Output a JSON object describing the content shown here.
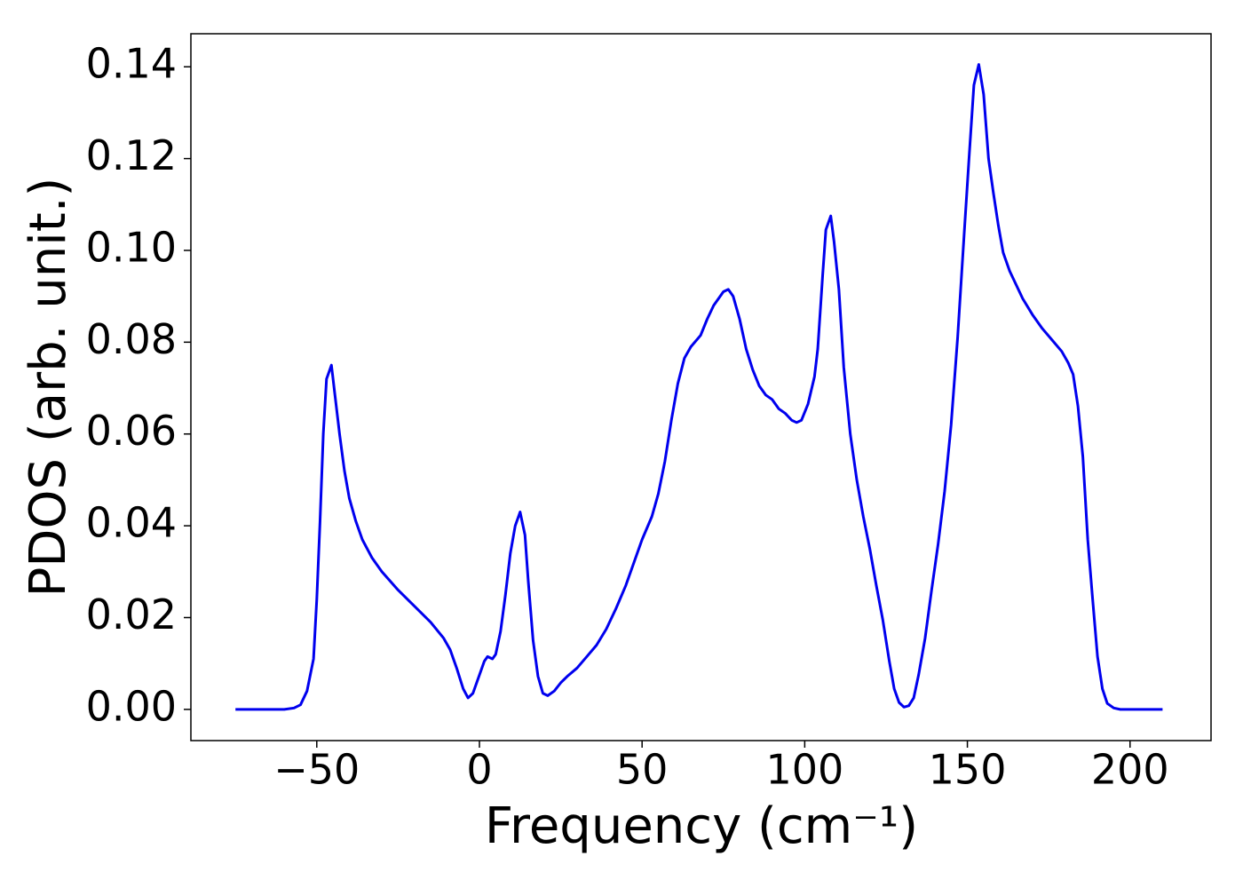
{
  "chart_data": {
    "type": "line",
    "xlabel": "Frequency (cm⁻¹)",
    "ylabel": "PDOS (arb. unit.)",
    "xlim": [
      -88.7,
      224.9
    ],
    "ylim": [
      -0.0068,
      0.1472
    ],
    "xticks": [
      {
        "value": -50,
        "label": "−50"
      },
      0,
      50,
      100,
      150,
      200
    ],
    "yticks": [
      {
        "value": 0,
        "label": "0.00"
      },
      {
        "value": 0.02,
        "label": "0.02"
      },
      {
        "value": 0.04,
        "label": "0.04"
      },
      {
        "value": 0.06,
        "label": "0.06"
      },
      {
        "value": 0.08,
        "label": "0.08"
      },
      {
        "value": 0.1,
        "label": "0.10"
      },
      {
        "value": 0.12,
        "label": "0.12"
      },
      {
        "value": 0.14,
        "label": "0.14"
      }
    ],
    "x": [
      -75,
      -60,
      -57,
      -55,
      -53,
      -51,
      -50,
      -49,
      -48,
      -47,
      -45.5,
      -44.5,
      -43,
      -41.5,
      -40,
      -38,
      -36,
      -33,
      -30,
      -25,
      -20,
      -15,
      -11,
      -9,
      -7,
      -5,
      -3.5,
      -2,
      0,
      1.5,
      2.5,
      4,
      5,
      6.5,
      8,
      9.5,
      11,
      12.5,
      14,
      15,
      16.5,
      18,
      19.5,
      21,
      23,
      25,
      27,
      30,
      33,
      36,
      39,
      42,
      45,
      48,
      50,
      53,
      55,
      57,
      59,
      61,
      63,
      65,
      68,
      70,
      72,
      75,
      76.5,
      78,
      80,
      82,
      84,
      86,
      88,
      90,
      92,
      94,
      96,
      97.5,
      99,
      101,
      103,
      104,
      105.5,
      106.5,
      108,
      109,
      110.5,
      112,
      114,
      116,
      118,
      120,
      122,
      124,
      126,
      127.5,
      129,
      130.5,
      132,
      133.5,
      135,
      137,
      139,
      141,
      143,
      145,
      147,
      149,
      150.5,
      152,
      153.5,
      155,
      156.5,
      158,
      159.5,
      161,
      163,
      165,
      167,
      170,
      173,
      176,
      179,
      181,
      182.5,
      184,
      185.5,
      187,
      188.5,
      190,
      191.5,
      193,
      195,
      197,
      210
    ],
    "series": [
      {
        "name": "PDOS",
        "color": "#0000ee",
        "values": [
          0,
          0,
          0.0003,
          0.001,
          0.004,
          0.011,
          0.024,
          0.041,
          0.06,
          0.072,
          0.075,
          0.069,
          0.06,
          0.052,
          0.046,
          0.041,
          0.037,
          0.033,
          0.03,
          0.026,
          0.0225,
          0.019,
          0.0155,
          0.013,
          0.009,
          0.0045,
          0.0025,
          0.0035,
          0.0075,
          0.0105,
          0.0115,
          0.011,
          0.012,
          0.017,
          0.025,
          0.034,
          0.04,
          0.043,
          0.038,
          0.028,
          0.015,
          0.0072,
          0.0035,
          0.003,
          0.004,
          0.0058,
          0.0072,
          0.009,
          0.0115,
          0.014,
          0.0175,
          0.022,
          0.027,
          0.033,
          0.037,
          0.042,
          0.047,
          0.054,
          0.063,
          0.071,
          0.0765,
          0.079,
          0.0815,
          0.085,
          0.088,
          0.091,
          0.0915,
          0.09,
          0.085,
          0.0785,
          0.074,
          0.0705,
          0.0685,
          0.0675,
          0.0655,
          0.0645,
          0.063,
          0.0625,
          0.063,
          0.0665,
          0.0725,
          0.0785,
          0.0945,
          0.1045,
          0.1075,
          0.102,
          0.0915,
          0.0745,
          0.06,
          0.05,
          0.042,
          0.035,
          0.027,
          0.0195,
          0.0105,
          0.0045,
          0.0015,
          0.0005,
          0.0008,
          0.0025,
          0.0075,
          0.0155,
          0.026,
          0.036,
          0.0475,
          0.062,
          0.081,
          0.1035,
          0.12,
          0.136,
          0.1405,
          0.134,
          0.12,
          0.1125,
          0.1055,
          0.0995,
          0.0955,
          0.0925,
          0.0895,
          0.086,
          0.083,
          0.0805,
          0.078,
          0.0755,
          0.073,
          0.066,
          0.055,
          0.037,
          0.024,
          0.0115,
          0.0045,
          0.0013,
          0.0003,
          0,
          0
        ]
      }
    ],
    "grid": false
  }
}
